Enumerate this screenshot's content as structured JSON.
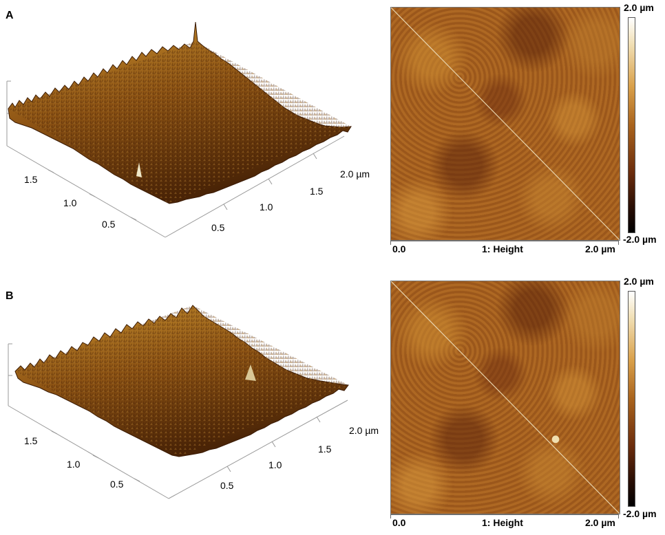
{
  "panels": [
    {
      "letter": "A",
      "surface_axis": {
        "left_ticks": [
          "1.5",
          "1.0",
          "0.5"
        ],
        "right_ticks": [
          "2.0 µm",
          "1.5",
          "1.0",
          "0.5"
        ]
      },
      "height_map": {
        "colorbar_max": "2.0 µm",
        "colorbar_min": "-2.0 µm",
        "x_start": "0.0",
        "channel": "1: Height",
        "x_end": "2.0 µm"
      }
    },
    {
      "letter": "B",
      "surface_axis": {
        "left_ticks": [
          "1.5",
          "1.0",
          "0.5"
        ],
        "right_ticks": [
          "2.0 µm",
          "1.5",
          "1.0",
          "0.5"
        ]
      },
      "height_map": {
        "colorbar_max": "2.0 µm",
        "colorbar_min": "-2.0 µm",
        "x_start": "0.0",
        "channel": "1: Height",
        "x_end": "2.0 µm"
      }
    }
  ],
  "colors": {
    "surface_light": "#c8912e",
    "surface_mid": "#8e5414",
    "surface_dark": "#4a2406",
    "map_base": "#a7621f"
  }
}
